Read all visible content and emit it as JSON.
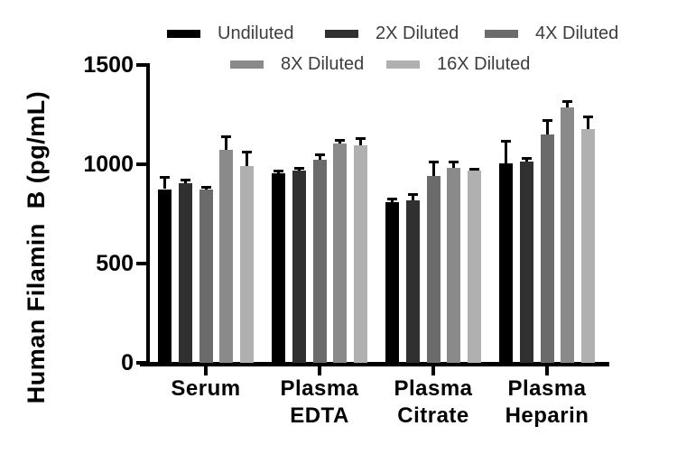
{
  "chart_data": {
    "type": "bar",
    "title": "",
    "ylabel": "Human Filamin  B (pg/mL)",
    "xlabel": "",
    "ylim": [
      0,
      1500
    ],
    "yticks": [
      0,
      500,
      1000,
      1500
    ],
    "grid": false,
    "legend_position": "top",
    "error_bars": "positive only, black",
    "categories": [
      [
        "Serum"
      ],
      [
        "Plasma",
        "EDTA"
      ],
      [
        "Plasma",
        "Citrate"
      ],
      [
        "Plasma",
        "Heparin"
      ]
    ],
    "category_keys": [
      "serum",
      "plasma-edta",
      "plasma-citrate",
      "plasma-heparin"
    ],
    "series": [
      {
        "name": "Undiluted",
        "color": "#000000",
        "values": [
          875,
          955,
          808,
          1003
        ],
        "errors": [
          60,
          14,
          18,
          115
        ]
      },
      {
        "name": "2X Diluted",
        "color": "#303030",
        "values": [
          905,
          968,
          818,
          1015
        ],
        "errors": [
          18,
          16,
          30,
          15
        ]
      },
      {
        "name": "4X Diluted",
        "color": "#6b6b6b",
        "values": [
          872,
          1024,
          940,
          1148
        ],
        "errors": [
          16,
          28,
          75,
          74
        ]
      },
      {
        "name": "8X Diluted",
        "color": "#8a8a8a",
        "values": [
          1073,
          1104,
          980,
          1285
        ],
        "errors": [
          68,
          19,
          32,
          35
        ]
      },
      {
        "name": "16X Diluted",
        "color": "#b0b0b0",
        "values": [
          990,
          1095,
          968,
          1176
        ],
        "errors": [
          72,
          37,
          10,
          66
        ]
      }
    ],
    "axis_color": "#000000",
    "tick_label_color": "#000000",
    "legend_text_color": "#3d3d3d",
    "background_color": "#ffffff"
  }
}
